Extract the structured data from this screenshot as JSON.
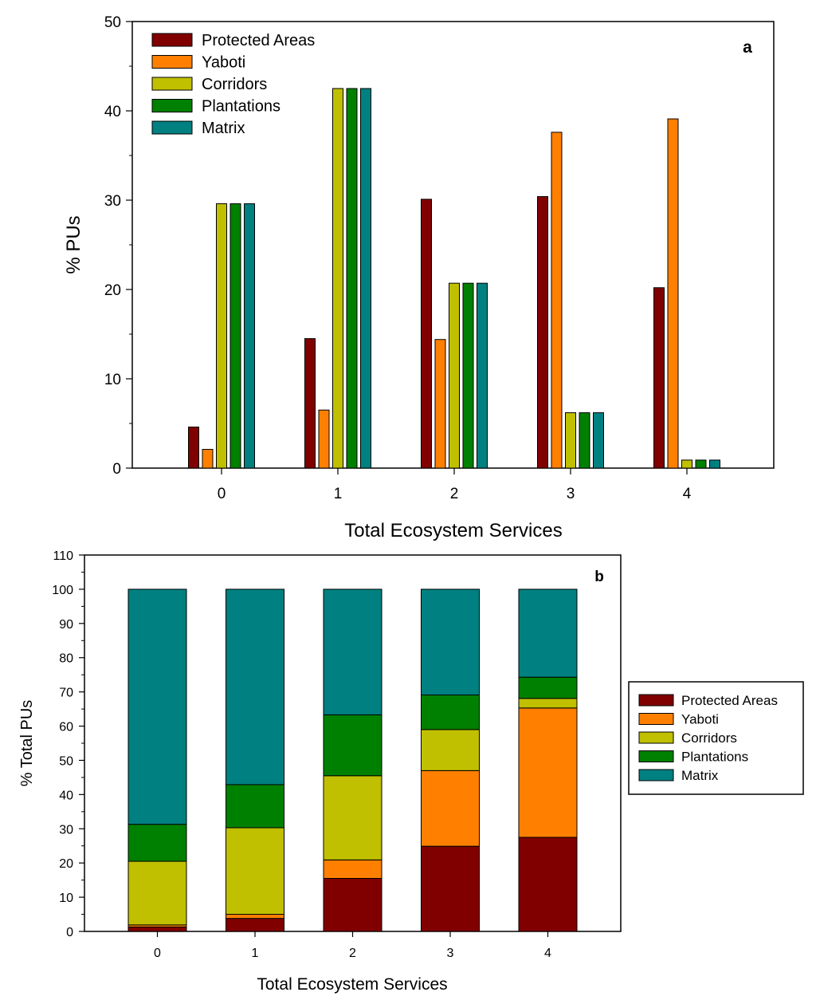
{
  "chart_data": [
    {
      "type": "bar",
      "panel_label": "a",
      "categories": [
        "0",
        "1",
        "2",
        "3",
        "4"
      ],
      "xlabel": "Total Ecosystem Services",
      "ylabel": "% PUs",
      "ylim": [
        0,
        50
      ],
      "yticks": [
        "0",
        "10",
        "20",
        "30",
        "40",
        "50"
      ],
      "legend_position": "top-left",
      "series": [
        {
          "name": "Protected Areas",
          "color": "#800000",
          "values": [
            4.6,
            14.5,
            30.1,
            30.4,
            20.2
          ]
        },
        {
          "name": "Yaboti",
          "color": "#ff8000",
          "values": [
            2.1,
            6.5,
            14.4,
            37.6,
            39.1
          ]
        },
        {
          "name": "Corridors",
          "color": "#c0c000",
          "values": [
            29.6,
            42.5,
            20.7,
            6.2,
            0.9
          ]
        },
        {
          "name": "Plantations",
          "color": "#008000",
          "values": [
            29.6,
            42.5,
            20.7,
            6.2,
            0.9
          ]
        },
        {
          "name": "Matrix",
          "color": "#008080",
          "values": [
            29.6,
            42.5,
            20.7,
            6.2,
            0.9
          ]
        }
      ]
    },
    {
      "type": "stacked_bar",
      "panel_label": "b",
      "categories": [
        "0",
        "1",
        "2",
        "3",
        "4"
      ],
      "xlabel": "Total Ecosystem Services",
      "ylabel": "% Total PUs",
      "ylim": [
        0,
        110
      ],
      "yticks": [
        "0",
        "10",
        "20",
        "30",
        "40",
        "50",
        "60",
        "70",
        "80",
        "90",
        "100",
        "110"
      ],
      "legend_position": "right",
      "series": [
        {
          "name": "Protected Areas",
          "color": "#800000",
          "values": [
            1.3,
            3.8,
            15.5,
            24.9,
            27.5
          ]
        },
        {
          "name": "Yaboti",
          "color": "#ff8000",
          "values": [
            0.6,
            1.2,
            5.4,
            22.1,
            37.8
          ]
        },
        {
          "name": "Corridors",
          "color": "#c0c000",
          "values": [
            18.6,
            25.3,
            24.6,
            12.0,
            2.8
          ]
        },
        {
          "name": "Plantations",
          "color": "#008000",
          "values": [
            10.8,
            12.6,
            17.8,
            10.1,
            6.2
          ]
        },
        {
          "name": "Matrix",
          "color": "#008080",
          "values": [
            68.7,
            57.1,
            36.7,
            30.9,
            25.7
          ]
        }
      ]
    }
  ]
}
